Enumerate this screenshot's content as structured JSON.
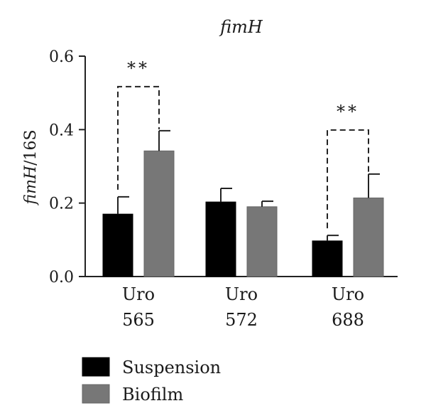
{
  "chart_data": {
    "type": "bar",
    "title": "fimH",
    "ylabel_italic": "fimH",
    "ylabel_rest": "/16S",
    "categories": [
      {
        "line1": "Uro",
        "line2": "565"
      },
      {
        "line1": "Uro",
        "line2": "572"
      },
      {
        "line1": "Uro",
        "line2": "688"
      }
    ],
    "series": [
      {
        "name": "Suspension",
        "color": "#000000",
        "values": [
          0.17,
          0.203,
          0.097
        ],
        "errors": [
          0.047,
          0.037,
          0.015
        ]
      },
      {
        "name": "Biofilm",
        "color": "#777777",
        "values": [
          0.342,
          0.19,
          0.214
        ],
        "errors": [
          0.055,
          0.015,
          0.065
        ]
      }
    ],
    "ylim": [
      0,
      0.6
    ],
    "yticks": [
      "0.0",
      "0.2",
      "0.4",
      "0.6"
    ],
    "significance": [
      {
        "category_index": 0,
        "label": "**"
      },
      {
        "category_index": 2,
        "label": "**"
      }
    ],
    "legend_position": "bottom-left"
  }
}
